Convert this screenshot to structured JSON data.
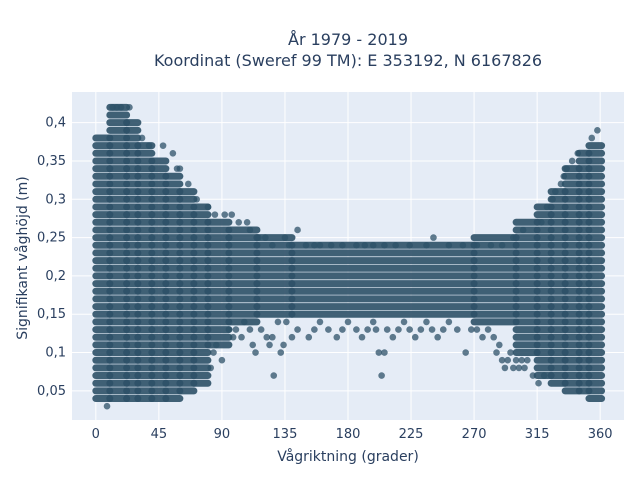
{
  "chart_data": {
    "type": "scatter",
    "title": [
      "År 1979 - 2019",
      "Koordinat (Sweref 99 TM): E 353192, N 6167826"
    ],
    "xlabel": "Vågriktning (grader)",
    "ylabel": "Signifikant våghöjd (m)",
    "xlim": [
      -17,
      377
    ],
    "ylim": [
      0.012,
      0.44
    ],
    "xticks": [
      0,
      45,
      90,
      135,
      180,
      225,
      270,
      315,
      360
    ],
    "xtick_labels": [
      "0",
      "45",
      "90",
      "135",
      "180",
      "225",
      "270",
      "315",
      "360"
    ],
    "yticks": [
      0.05,
      0.1,
      0.15,
      0.2,
      0.25,
      0.3,
      0.35,
      0.4
    ],
    "ytick_labels": [
      "0,05",
      "0,1",
      "0,15",
      "0,2",
      "0,25",
      "0,3",
      "0,35",
      "0,4"
    ],
    "grid": true,
    "background": "#e5ecf6",
    "marker_color": "#2e5168",
    "y_step": 0.01,
    "bands": [
      {
        "x": [
          0,
          10
        ],
        "y": [
          0.04,
          0.38
        ]
      },
      {
        "x": [
          10,
          22
        ],
        "y": [
          0.04,
          0.42
        ]
      },
      {
        "x": [
          22,
          30
        ],
        "y": [
          0.04,
          0.4
        ]
      },
      {
        "x": [
          30,
          40
        ],
        "y": [
          0.04,
          0.37
        ]
      },
      {
        "x": [
          40,
          50
        ],
        "y": [
          0.04,
          0.35
        ]
      },
      {
        "x": [
          50,
          60
        ],
        "y": [
          0.04,
          0.33
        ]
      },
      {
        "x": [
          60,
          70
        ],
        "y": [
          0.05,
          0.31
        ]
      },
      {
        "x": [
          70,
          80
        ],
        "y": [
          0.06,
          0.29
        ]
      },
      {
        "x": [
          80,
          95
        ],
        "y": [
          0.11,
          0.27
        ]
      },
      {
        "x": [
          95,
          115
        ],
        "y": [
          0.14,
          0.26
        ]
      },
      {
        "x": [
          115,
          140
        ],
        "y": [
          0.15,
          0.25
        ]
      },
      {
        "x": [
          140,
          270
        ],
        "y": [
          0.15,
          0.24
        ]
      },
      {
        "x": [
          270,
          300
        ],
        "y": [
          0.14,
          0.25
        ]
      },
      {
        "x": [
          300,
          315
        ],
        "y": [
          0.1,
          0.27
        ]
      },
      {
        "x": [
          315,
          325
        ],
        "y": [
          0.07,
          0.29
        ]
      },
      {
        "x": [
          325,
          335
        ],
        "y": [
          0.06,
          0.31
        ]
      },
      {
        "x": [
          335,
          345
        ],
        "y": [
          0.05,
          0.34
        ]
      },
      {
        "x": [
          345,
          352
        ],
        "y": [
          0.05,
          0.36
        ]
      },
      {
        "x": [
          352,
          361
        ],
        "y": [
          0.04,
          0.37
        ]
      }
    ],
    "points": [
      [
        8,
        0.03
      ],
      [
        12,
        0.42
      ],
      [
        15,
        0.42
      ],
      [
        18,
        0.42
      ],
      [
        24,
        0.42
      ],
      [
        33,
        0.38
      ],
      [
        38,
        0.37
      ],
      [
        48,
        0.37
      ],
      [
        55,
        0.36
      ],
      [
        58,
        0.34
      ],
      [
        60,
        0.34
      ],
      [
        66,
        0.32
      ],
      [
        72,
        0.3
      ],
      [
        80,
        0.29
      ],
      [
        85,
        0.28
      ],
      [
        92,
        0.28
      ],
      [
        97,
        0.28
      ],
      [
        102,
        0.27
      ],
      [
        108,
        0.27
      ],
      [
        110,
        0.26
      ],
      [
        116,
        0.25
      ],
      [
        121,
        0.25
      ],
      [
        126,
        0.24
      ],
      [
        135,
        0.25
      ],
      [
        138,
        0.24
      ],
      [
        144,
        0.26
      ],
      [
        150,
        0.24
      ],
      [
        156,
        0.24
      ],
      [
        160,
        0.24
      ],
      [
        168,
        0.24
      ],
      [
        176,
        0.24
      ],
      [
        186,
        0.24
      ],
      [
        192,
        0.24
      ],
      [
        198,
        0.24
      ],
      [
        206,
        0.24
      ],
      [
        214,
        0.24
      ],
      [
        224,
        0.24
      ],
      [
        236,
        0.24
      ],
      [
        241,
        0.25
      ],
      [
        252,
        0.24
      ],
      [
        262,
        0.24
      ],
      [
        272,
        0.24
      ],
      [
        282,
        0.24
      ],
      [
        290,
        0.24
      ],
      [
        298,
        0.25
      ],
      [
        305,
        0.26
      ],
      [
        318,
        0.27
      ],
      [
        322,
        0.29
      ],
      [
        326,
        0.3
      ],
      [
        328,
        0.31
      ],
      [
        332,
        0.32
      ],
      [
        334,
        0.33
      ],
      [
        336,
        0.34
      ],
      [
        340,
        0.35
      ],
      [
        344,
        0.36
      ],
      [
        354,
        0.38
      ],
      [
        358,
        0.39
      ],
      [
        82,
        0.08
      ],
      [
        84,
        0.1
      ],
      [
        86,
        0.11
      ],
      [
        90,
        0.09
      ],
      [
        95,
        0.13
      ],
      [
        98,
        0.12
      ],
      [
        100,
        0.13
      ],
      [
        104,
        0.12
      ],
      [
        106,
        0.14
      ],
      [
        110,
        0.13
      ],
      [
        112,
        0.11
      ],
      [
        114,
        0.1
      ],
      [
        118,
        0.13
      ],
      [
        122,
        0.12
      ],
      [
        124,
        0.11
      ],
      [
        126,
        0.12
      ],
      [
        127,
        0.07
      ],
      [
        130,
        0.14
      ],
      [
        132,
        0.1
      ],
      [
        134,
        0.11
      ],
      [
        136,
        0.14
      ],
      [
        140,
        0.12
      ],
      [
        144,
        0.13
      ],
      [
        152,
        0.12
      ],
      [
        156,
        0.13
      ],
      [
        160,
        0.14
      ],
      [
        166,
        0.13
      ],
      [
        172,
        0.12
      ],
      [
        176,
        0.13
      ],
      [
        180,
        0.14
      ],
      [
        186,
        0.13
      ],
      [
        190,
        0.12
      ],
      [
        194,
        0.13
      ],
      [
        198,
        0.14
      ],
      [
        200,
        0.13
      ],
      [
        202,
        0.1
      ],
      [
        204,
        0.07
      ],
      [
        206,
        0.1
      ],
      [
        208,
        0.13
      ],
      [
        212,
        0.12
      ],
      [
        216,
        0.13
      ],
      [
        220,
        0.14
      ],
      [
        224,
        0.13
      ],
      [
        228,
        0.12
      ],
      [
        232,
        0.13
      ],
      [
        236,
        0.14
      ],
      [
        240,
        0.13
      ],
      [
        244,
        0.12
      ],
      [
        248,
        0.13
      ],
      [
        252,
        0.14
      ],
      [
        258,
        0.13
      ],
      [
        264,
        0.1
      ],
      [
        268,
        0.13
      ],
      [
        272,
        0.13
      ],
      [
        276,
        0.12
      ],
      [
        280,
        0.13
      ],
      [
        284,
        0.12
      ],
      [
        286,
        0.1
      ],
      [
        288,
        0.11
      ],
      [
        290,
        0.09
      ],
      [
        292,
        0.08
      ],
      [
        294,
        0.09
      ],
      [
        296,
        0.1
      ],
      [
        298,
        0.08
      ],
      [
        300,
        0.09
      ],
      [
        302,
        0.08
      ],
      [
        304,
        0.09
      ],
      [
        306,
        0.08
      ],
      [
        308,
        0.09
      ],
      [
        312,
        0.07
      ],
      [
        316,
        0.06
      ],
      [
        320,
        0.07
      ]
    ]
  }
}
